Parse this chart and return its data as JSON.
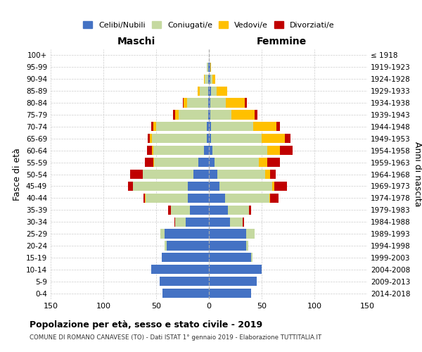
{
  "age_groups": [
    "0-4",
    "5-9",
    "10-14",
    "15-19",
    "20-24",
    "25-29",
    "30-34",
    "35-39",
    "40-44",
    "45-49",
    "50-54",
    "55-59",
    "60-64",
    "65-69",
    "70-74",
    "75-79",
    "80-84",
    "85-89",
    "90-94",
    "95-99",
    "100+"
  ],
  "birth_years": [
    "2014-2018",
    "2009-2013",
    "2004-2008",
    "1999-2003",
    "1994-1998",
    "1989-1993",
    "1984-1988",
    "1979-1983",
    "1974-1978",
    "1969-1973",
    "1964-1968",
    "1959-1963",
    "1954-1958",
    "1949-1953",
    "1944-1948",
    "1939-1943",
    "1934-1938",
    "1929-1933",
    "1924-1928",
    "1919-1923",
    "≤ 1918"
  ],
  "males": {
    "celibi": [
      44,
      47,
      55,
      45,
      40,
      42,
      22,
      18,
      20,
      20,
      15,
      10,
      5,
      2,
      2,
      1,
      1,
      1,
      1,
      1,
      0
    ],
    "coniugati": [
      0,
      0,
      0,
      0,
      2,
      4,
      10,
      18,
      40,
      52,
      48,
      42,
      48,
      52,
      48,
      28,
      20,
      8,
      3,
      1,
      0
    ],
    "vedovi": [
      0,
      0,
      0,
      0,
      0,
      0,
      0,
      0,
      1,
      0,
      0,
      1,
      1,
      2,
      3,
      3,
      3,
      2,
      1,
      0,
      0
    ],
    "divorziati": [
      0,
      0,
      0,
      0,
      0,
      0,
      1,
      3,
      1,
      5,
      12,
      8,
      5,
      2,
      2,
      2,
      1,
      0,
      0,
      0,
      0
    ]
  },
  "females": {
    "nubili": [
      40,
      45,
      50,
      40,
      35,
      35,
      20,
      18,
      15,
      10,
      8,
      5,
      3,
      2,
      2,
      1,
      1,
      2,
      1,
      1,
      0
    ],
    "coniugate": [
      0,
      0,
      0,
      1,
      2,
      8,
      12,
      20,
      42,
      50,
      45,
      42,
      52,
      48,
      40,
      20,
      15,
      5,
      2,
      0,
      0
    ],
    "vedove": [
      0,
      0,
      0,
      0,
      0,
      0,
      0,
      0,
      1,
      2,
      5,
      8,
      12,
      22,
      22,
      22,
      18,
      10,
      3,
      1,
      0
    ],
    "divorziate": [
      0,
      0,
      0,
      0,
      0,
      0,
      1,
      2,
      8,
      12,
      5,
      12,
      12,
      5,
      3,
      3,
      2,
      0,
      0,
      0,
      0
    ]
  },
  "colors": {
    "celibi": "#4472c4",
    "coniugati": "#c5d9a0",
    "vedovi": "#ffc000",
    "divorziati": "#c00000"
  },
  "xlim": 150,
  "title": "Popolazione per età, sesso e stato civile - 2019",
  "subtitle": "COMUNE DI ROMANO CANAVESE (TO) - Dati ISTAT 1° gennaio 2019 - Elaborazione TUTTITALIA.IT",
  "ylabel": "Fasce di età",
  "ylabel_right": "Anni di nascita",
  "label_maschi": "Maschi",
  "label_femmine": "Femmine",
  "legend_labels": [
    "Celibi/Nubili",
    "Coniugati/e",
    "Vedovi/e",
    "Divorziati/e"
  ],
  "bg_color": "#ffffff",
  "grid_color": "#cccccc"
}
